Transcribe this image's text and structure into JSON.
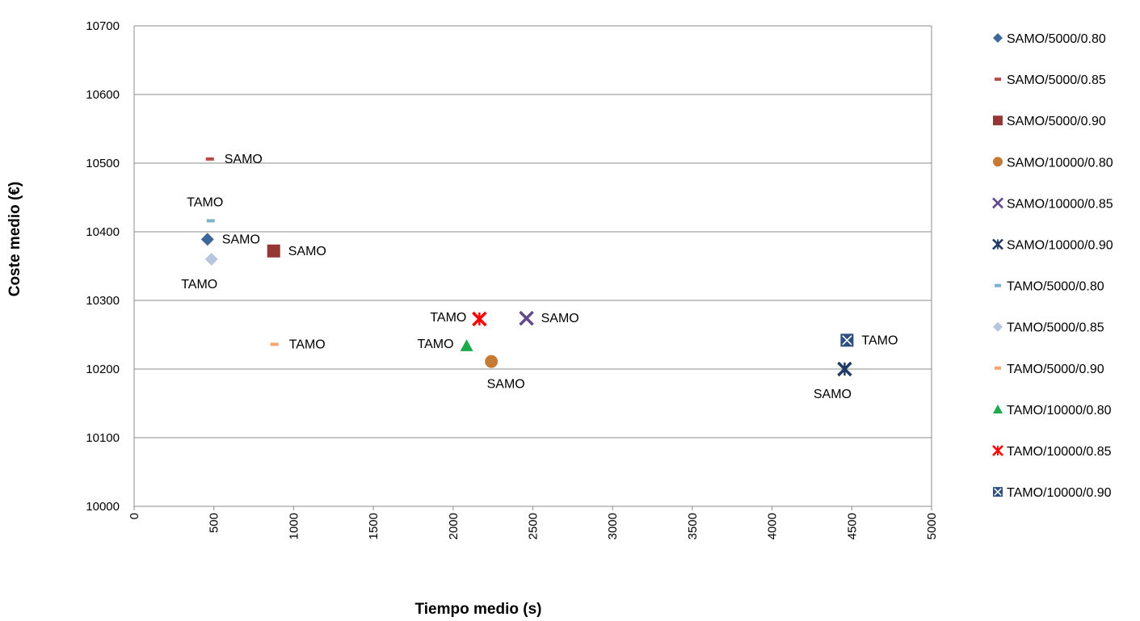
{
  "chart_data": {
    "type": "scatter",
    "title": "",
    "xlabel": "Tiempo medio (s)",
    "ylabel": "Coste medio (€)",
    "xlim": [
      0,
      5000
    ],
    "ylim": [
      10000,
      10700
    ],
    "xticks": [
      0,
      500,
      1000,
      1500,
      2000,
      2500,
      3000,
      3500,
      4000,
      4500,
      5000
    ],
    "yticks": [
      10000,
      10100,
      10200,
      10300,
      10400,
      10500,
      10600,
      10700
    ],
    "grid": "horizontal",
    "legend_position": "right",
    "series": [
      {
        "name": "SAMO/5000/0.80",
        "marker": "diamond",
        "color": "#3F6899",
        "x": 460,
        "y": 10389,
        "label": "SAMO",
        "label_pos": "right"
      },
      {
        "name": "SAMO/5000/0.85",
        "marker": "dash",
        "color": "#B84A4A",
        "x": 475,
        "y": 10506,
        "label": "SAMO",
        "label_pos": "right"
      },
      {
        "name": "SAMO/5000/0.90",
        "marker": "square",
        "color": "#953735",
        "x": 875,
        "y": 10372,
        "label": "SAMO",
        "label_pos": "right"
      },
      {
        "name": "SAMO/10000/0.80",
        "marker": "circle",
        "color": "#C77A34",
        "x": 2240,
        "y": 10211,
        "label": "SAMO",
        "label_pos": "below"
      },
      {
        "name": "SAMO/10000/0.85",
        "marker": "x",
        "color": "#5F4B8B",
        "x": 2460,
        "y": 10274,
        "label": "SAMO",
        "label_pos": "right"
      },
      {
        "name": "SAMO/10000/0.90",
        "marker": "star",
        "color": "#1F3B64",
        "x": 4455,
        "y": 10200,
        "label": "SAMO",
        "label_pos": "below-left"
      },
      {
        "name": "TAMO/5000/0.80",
        "marker": "dash",
        "color": "#7BB1CC",
        "x": 480,
        "y": 10416,
        "label": "TAMO",
        "label_pos": "above"
      },
      {
        "name": "TAMO/5000/0.85",
        "marker": "diamond",
        "color": "#B7C6DE",
        "x": 485,
        "y": 10360,
        "label": "TAMO",
        "label_pos": "below-left"
      },
      {
        "name": "TAMO/5000/0.90",
        "marker": "dash",
        "color": "#F4A46E",
        "x": 880,
        "y": 10236,
        "label": "TAMO",
        "label_pos": "right"
      },
      {
        "name": "TAMO/10000/0.80",
        "marker": "triangle",
        "color": "#1DAA4E",
        "x": 2085,
        "y": 10234,
        "label": "TAMO",
        "label_pos": "left"
      },
      {
        "name": "TAMO/10000/0.85",
        "marker": "star",
        "color": "#FF0000",
        "x": 2165,
        "y": 10273,
        "label": "TAMO",
        "label_pos": "left"
      },
      {
        "name": "TAMO/10000/0.90",
        "marker": "xsquare",
        "color": "#2F4F7F",
        "x": 4470,
        "y": 10242,
        "label": "TAMO",
        "label_pos": "right"
      }
    ]
  }
}
